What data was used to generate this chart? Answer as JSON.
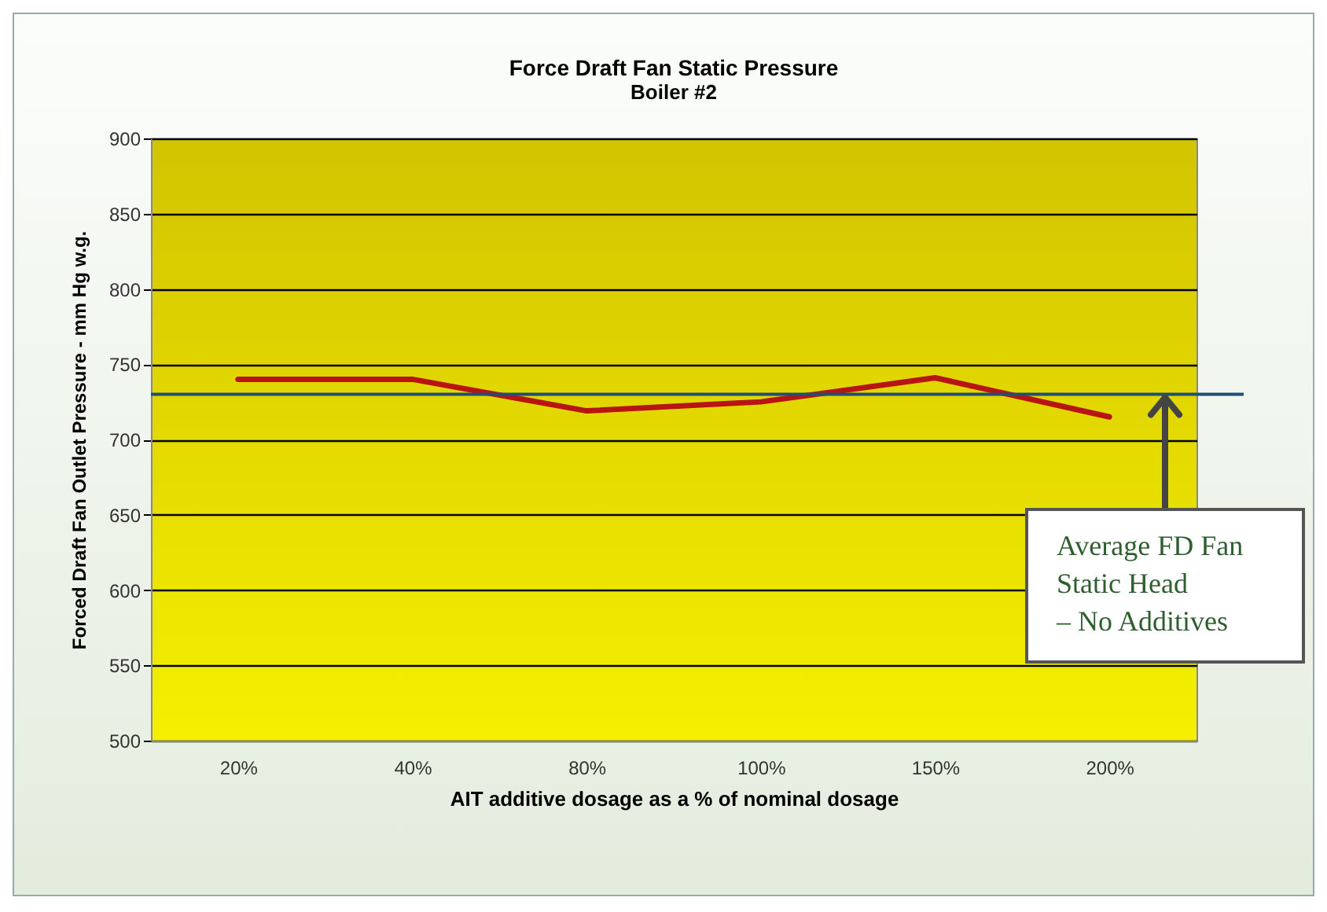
{
  "chart_data": {
    "type": "line",
    "title": "Force Draft Fan Static Pressure",
    "subtitle": "Boiler #2",
    "xlabel": "AIT additive dosage as a % of nominal dosage",
    "ylabel": "Forced Draft Fan Outlet Pressure - mm Hg w.g.",
    "categories": [
      "20%",
      "40%",
      "80%",
      "100%",
      "150%",
      "200%"
    ],
    "series": [
      {
        "color": "#b81414",
        "values": [
          740,
          740,
          719,
          725,
          741,
          715
        ]
      }
    ],
    "ylim": [
      500,
      900
    ],
    "yticks": [
      500,
      550,
      600,
      650,
      700,
      750,
      800,
      850,
      900
    ],
    "grid": "y",
    "ref_lines": [
      {
        "axis": "y",
        "value": 730,
        "label": "Average FD Fan Static Head – No Additives",
        "color": "#1f4e79"
      }
    ]
  }
}
